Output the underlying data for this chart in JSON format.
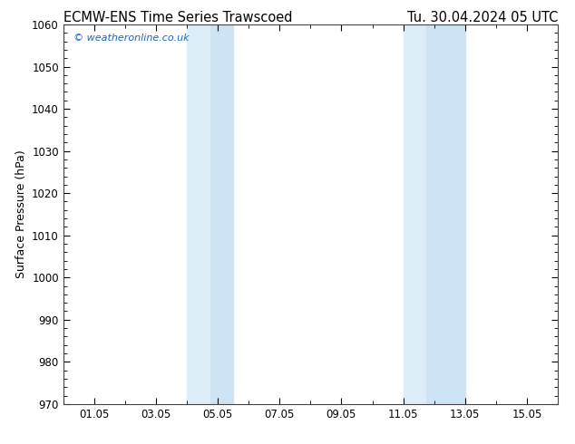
{
  "title_left": "ECMW-ENS Time Series Trawscoed",
  "title_right": "Tu. 30.04.2024 05 UTC",
  "ylabel": "Surface Pressure (hPa)",
  "ylim": [
    970,
    1060
  ],
  "yticks": [
    970,
    980,
    990,
    1000,
    1010,
    1020,
    1030,
    1040,
    1050,
    1060
  ],
  "xtick_labels": [
    "01.05",
    "03.05",
    "05.05",
    "07.05",
    "09.05",
    "11.05",
    "13.05",
    "15.05"
  ],
  "xtick_positions": [
    1,
    3,
    5,
    7,
    9,
    11,
    13,
    15
  ],
  "xlim": [
    0.0,
    16.0
  ],
  "shaded_regions": [
    {
      "xmin": 4.0,
      "xmax": 4.5
    },
    {
      "xmin": 4.5,
      "xmax": 5.5
    },
    {
      "xmin": 11.0,
      "xmax": 11.5
    },
    {
      "xmin": 11.5,
      "xmax": 13.0
    }
  ],
  "shade_color": "#ddeef8",
  "shade_color2": "#cce4f4",
  "background_color": "#ffffff",
  "plot_bg_color": "#ffffff",
  "watermark_text": "© weatheronline.co.uk",
  "watermark_color": "#1565c0",
  "watermark_fontsize": 8,
  "title_fontsize": 10.5,
  "ylabel_fontsize": 9,
  "tick_fontsize": 8.5
}
